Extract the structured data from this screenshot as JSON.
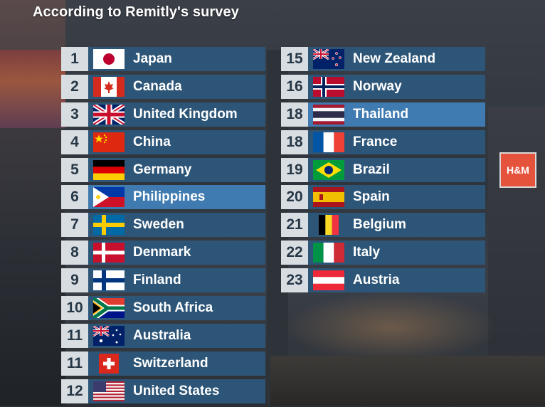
{
  "title": "According to Remitly's survey",
  "left_column": [
    {
      "rank": "1",
      "country": "Japan",
      "flag": "japan-flag-icon"
    },
    {
      "rank": "2",
      "country": "Canada",
      "flag": "canada-flag-icon"
    },
    {
      "rank": "3",
      "country": "United Kingdom",
      "flag": "uk-flag-icon"
    },
    {
      "rank": "4",
      "country": "China",
      "flag": "china-flag-icon"
    },
    {
      "rank": "5",
      "country": "Germany",
      "flag": "germany-flag-icon"
    },
    {
      "rank": "6",
      "country": "Philippines",
      "flag": "philippines-flag-icon"
    },
    {
      "rank": "7",
      "country": "Sweden",
      "flag": "sweden-flag-icon"
    },
    {
      "rank": "8",
      "country": "Denmark",
      "flag": "denmark-flag-icon"
    },
    {
      "rank": "9",
      "country": "Finland",
      "flag": "finland-flag-icon"
    },
    {
      "rank": "10",
      "country": "South Africa",
      "flag": "south-africa-flag-icon"
    },
    {
      "rank": "11",
      "country": "Australia",
      "flag": "australia-flag-icon"
    },
    {
      "rank": "11",
      "country": "Switzerland",
      "flag": "switzerland-flag-icon"
    },
    {
      "rank": "12",
      "country": "United States",
      "flag": "usa-flag-icon"
    }
  ],
  "right_column": [
    {
      "rank": "15",
      "country": "New Zealand",
      "flag": "new-zealand-flag-icon"
    },
    {
      "rank": "16",
      "country": "Norway",
      "flag": "norway-flag-icon"
    },
    {
      "rank": "18",
      "country": "Thailand",
      "flag": "thailand-flag-icon"
    },
    {
      "rank": "18",
      "country": "France",
      "flag": "france-flag-icon"
    },
    {
      "rank": "19",
      "country": "Brazil",
      "flag": "brazil-flag-icon"
    },
    {
      "rank": "20",
      "country": "Spain",
      "flag": "spain-flag-icon"
    },
    {
      "rank": "21",
      "country": "Belgium",
      "flag": "belgium-flag-icon"
    },
    {
      "rank": "22",
      "country": "Italy",
      "flag": "italy-flag-icon"
    },
    {
      "rank": "23",
      "country": "Austria",
      "flag": "austria-flag-icon"
    }
  ],
  "colors": {
    "rank_box": "#d8dde2",
    "bar": "#2d5577",
    "bar_highlight": "#3f7bb0",
    "text": "#ffffff"
  },
  "background_sign": "H&M"
}
